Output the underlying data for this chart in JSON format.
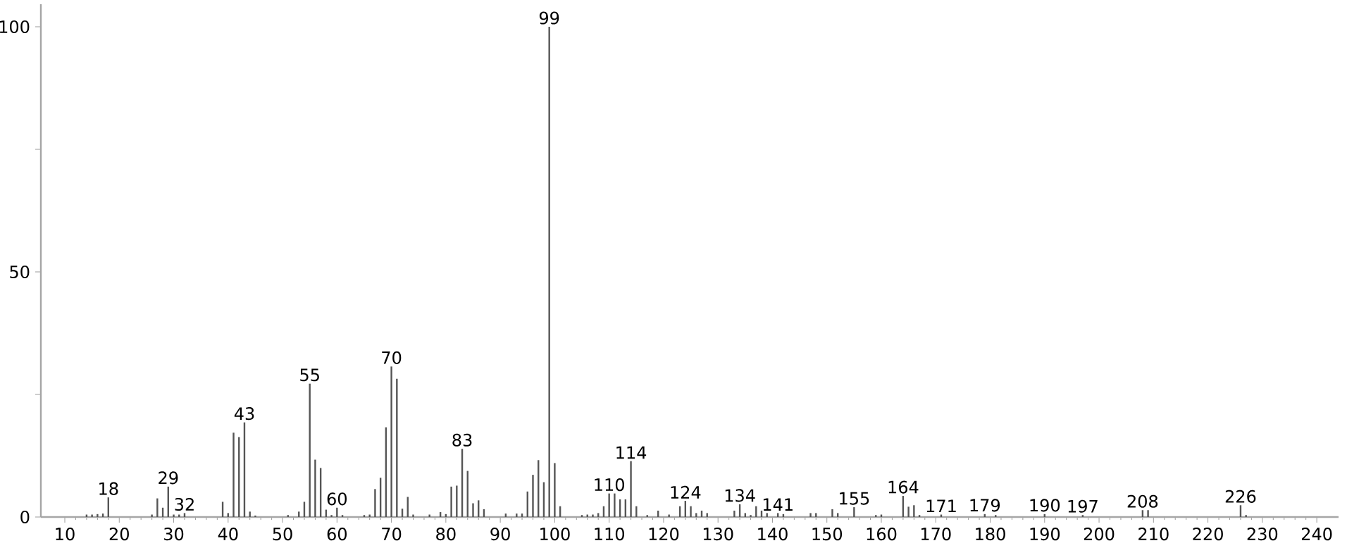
{
  "chart_data": {
    "type": "bar",
    "x": [
      14,
      15,
      16,
      17,
      18,
      26,
      27,
      28,
      29,
      30,
      31,
      32,
      39,
      40,
      41,
      42,
      43,
      44,
      45,
      51,
      53,
      54,
      55,
      56,
      57,
      58,
      59,
      60,
      61,
      65,
      66,
      67,
      68,
      69,
      70,
      71,
      72,
      73,
      74,
      77,
      79,
      80,
      81,
      82,
      83,
      84,
      85,
      86,
      87,
      91,
      93,
      94,
      95,
      96,
      97,
      98,
      99,
      100,
      101,
      105,
      106,
      107,
      108,
      109,
      110,
      111,
      112,
      113,
      114,
      115,
      117,
      119,
      121,
      123,
      124,
      125,
      126,
      127,
      128,
      133,
      134,
      135,
      136,
      137,
      138,
      139,
      141,
      142,
      147,
      148,
      151,
      152,
      155,
      159,
      160,
      164,
      165,
      166,
      167,
      171,
      179,
      181,
      190,
      197,
      208,
      209,
      226,
      227
    ],
    "series": [
      {
        "color": "#555555",
        "values": [
          0.5,
          0.5,
          0.6,
          0.7,
          4.0,
          0.5,
          3.8,
          1.9,
          6.2,
          0.5,
          0.5,
          0.8,
          3.1,
          0.8,
          17.2,
          16.3,
          19.3,
          1.1,
          0.3,
          0.4,
          1.1,
          3.1,
          27.2,
          11.7,
          10.0,
          1.5,
          0.4,
          1.9,
          0.4,
          0.4,
          0.5,
          5.7,
          8.0,
          18.3,
          30.7,
          28.2,
          1.7,
          4.1,
          0.5,
          0.5,
          1.0,
          0.6,
          6.2,
          6.4,
          13.9,
          9.4,
          2.8,
          3.4,
          1.6,
          0.7,
          0.7,
          0.7,
          5.2,
          8.6,
          11.6,
          7.1,
          100,
          11.0,
          2.2,
          0.4,
          0.5,
          0.5,
          0.8,
          2.2,
          4.8,
          4.8,
          3.6,
          3.6,
          11.4,
          2.2,
          0.4,
          1.3,
          0.5,
          2.2,
          3.3,
          2.2,
          0.8,
          1.3,
          0.8,
          1.3,
          2.6,
          0.8,
          0.4,
          2.2,
          1.3,
          0.8,
          0.8,
          0.6,
          0.8,
          0.8,
          1.6,
          0.8,
          2.0,
          0.4,
          0.5,
          4.3,
          2.1,
          2.4,
          0.4,
          0.5,
          0.6,
          0.4,
          0.6,
          0.4,
          1.4,
          1.4,
          2.4,
          0.4
        ]
      }
    ],
    "xlim": [
      5.6,
      244
    ],
    "ylim": [
      0,
      104.6
    ],
    "xticks": [
      10,
      20,
      30,
      40,
      50,
      60,
      70,
      80,
      90,
      100,
      110,
      120,
      130,
      140,
      150,
      160,
      170,
      180,
      190,
      200,
      210,
      220,
      230,
      240
    ],
    "yticks": [
      0,
      {
        "value": 25,
        "label": null
      },
      50,
      {
        "value": 75,
        "label": null
      },
      100
    ],
    "grid": false,
    "annotations": [
      {
        "text": "18",
        "x": 18,
        "y": 4.0
      },
      {
        "text": "29",
        "x": 29,
        "y": 6.2
      },
      {
        "text": "32",
        "x": 32,
        "y": 0.8
      },
      {
        "text": "43",
        "x": 43,
        "y": 19.3
      },
      {
        "text": "55",
        "x": 55,
        "y": 27.2
      },
      {
        "text": "60",
        "x": 60,
        "y": 1.9
      },
      {
        "text": "70",
        "x": 70,
        "y": 30.7
      },
      {
        "text": "83",
        "x": 83,
        "y": 13.9
      },
      {
        "text": "99",
        "x": 99,
        "y": 100
      },
      {
        "text": "110",
        "x": 110,
        "y": 4.8
      },
      {
        "text": "114",
        "x": 114,
        "y": 11.4
      },
      {
        "text": "124",
        "x": 124,
        "y": 3.3
      },
      {
        "text": "134",
        "x": 134,
        "y": 2.6
      },
      {
        "text": "141",
        "x": 141,
        "y": 0.8
      },
      {
        "text": "155",
        "x": 155,
        "y": 2.0
      },
      {
        "text": "164",
        "x": 164,
        "y": 4.3
      },
      {
        "text": "171",
        "x": 171,
        "y": 0.5
      },
      {
        "text": "179",
        "x": 179,
        "y": 0.6
      },
      {
        "text": "190",
        "x": 190,
        "y": 0.6
      },
      {
        "text": "197",
        "x": 197,
        "y": 0.4
      },
      {
        "text": "208",
        "x": 208,
        "y": 1.4
      },
      {
        "text": "226",
        "x": 226,
        "y": 2.4
      }
    ]
  }
}
